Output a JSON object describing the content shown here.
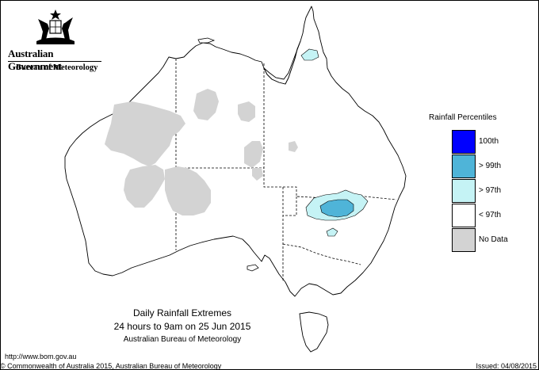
{
  "header": {
    "government": "Australian Government",
    "bureau": "Bureau of Meteorology"
  },
  "legend": {
    "title": "Rainfall Percentiles",
    "items": [
      {
        "label": "100th",
        "color": "#0000ff"
      },
      {
        "label": "> 99th",
        "color": "#4fb4d8"
      },
      {
        "label": "> 97th",
        "color": "#c5f3f5"
      },
      {
        "label": "< 97th",
        "color": "#ffffff"
      },
      {
        "label": "No Data",
        "color": "#d3d3d3"
      }
    ]
  },
  "caption": {
    "line1": "Daily Rainfall Extremes",
    "line2": "24 hours to 9am on 25 Jun 2015",
    "line3": "Australian Bureau of Meteorology"
  },
  "footer": {
    "url": "http://www.bom.gov.au",
    "copyright": "© Commonwealth of Australia 2015, Australian Bureau of Meteorology",
    "issued": "Issued: 04/08/2015"
  }
}
